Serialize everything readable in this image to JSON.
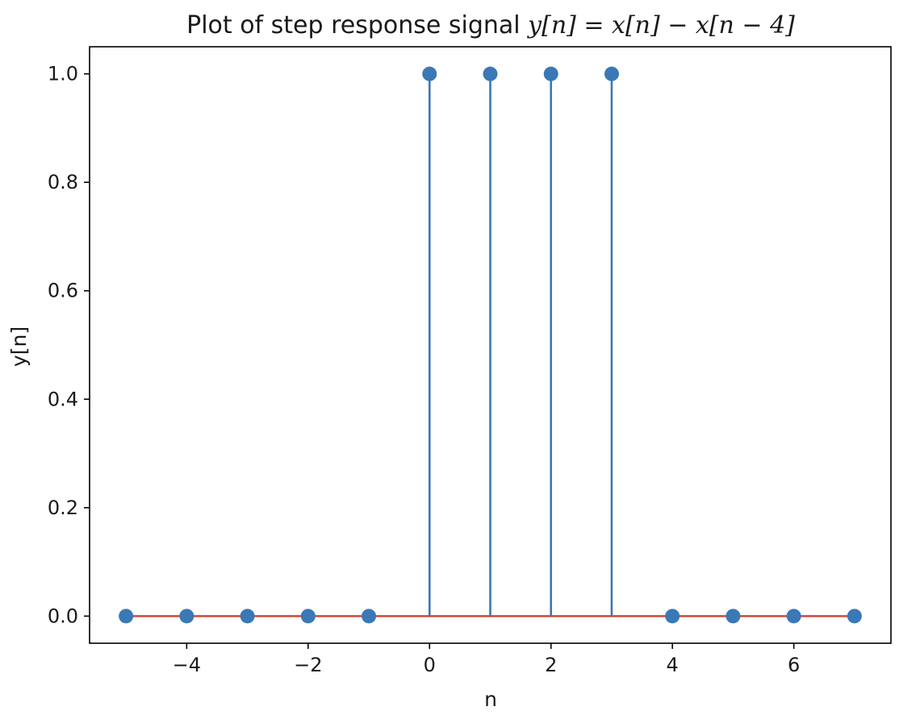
{
  "chart_data": {
    "type": "stem",
    "title_prefix": "Plot of step response signal ",
    "title_equation": "y[n] = x[n] − x[n − 4]",
    "xlabel": "n",
    "ylabel": "y[n]",
    "x": [
      -5,
      -4,
      -3,
      -2,
      -1,
      0,
      1,
      2,
      3,
      4,
      5,
      6,
      7
    ],
    "y": [
      0,
      0,
      0,
      0,
      0,
      1,
      1,
      1,
      1,
      0,
      0,
      0,
      0
    ],
    "xlim": [
      -5.6,
      7.6
    ],
    "ylim": [
      -0.05,
      1.05
    ],
    "xticks": [
      -4,
      -2,
      0,
      2,
      4,
      6
    ],
    "xtick_labels": [
      "−4",
      "−2",
      "0",
      "2",
      "4",
      "6"
    ],
    "yticks": [
      0.0,
      0.2,
      0.4,
      0.6,
      0.8,
      1.0
    ],
    "ytick_labels": [
      "0.0",
      "0.2",
      "0.4",
      "0.6",
      "0.8",
      "1.0"
    ],
    "baseline": 0,
    "grid": false,
    "colors": {
      "stem": "#3a78b6",
      "marker": "#3a78b6",
      "baseline": "#d2473a"
    }
  }
}
